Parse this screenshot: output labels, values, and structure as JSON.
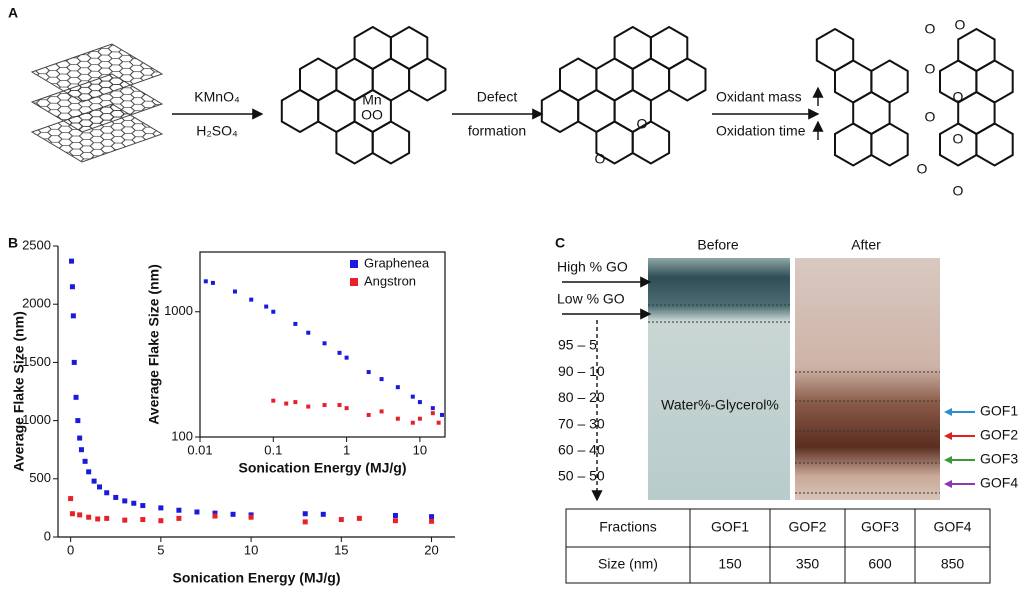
{
  "panels": {
    "a": "A",
    "b": "B",
    "c": "C"
  },
  "panel_a": {
    "reagent_top": "KMnO₄",
    "reagent_bottom": "H₂SO₄",
    "mn": "Mn",
    "mn_oxygens": "OO",
    "defect_top": "Defect",
    "defect_bottom": "formation",
    "defect_oxygens": [
      "O",
      "O"
    ],
    "condition_top": "Oxidant mass",
    "condition_bottom": "Oxidation time",
    "product_oxygens": [
      "O",
      "O",
      "O",
      "O",
      "O",
      "O",
      "O",
      "O"
    ]
  },
  "chart_data": [
    {
      "type": "scatter",
      "xlabel": "Sonication Energy (MJ/g)",
      "ylabel": "Average Flake Size (nm)",
      "xlim": [
        -0.7,
        21.3
      ],
      "ylim": [
        0,
        2500
      ],
      "xticks": [
        0,
        5,
        10,
        15,
        20
      ],
      "yticks": [
        0,
        500,
        1000,
        1500,
        2000,
        2500
      ],
      "series": [
        {
          "color": "#1a1adc",
          "x": [
            0.05,
            0.1,
            0.15,
            0.2,
            0.3,
            0.4,
            0.5,
            0.6,
            0.8,
            1.0,
            1.3,
            1.6,
            2,
            2.5,
            3,
            3.5,
            4,
            5,
            6,
            7,
            8,
            9,
            10,
            13,
            14,
            18,
            20
          ],
          "values": [
            2370,
            2150,
            1900,
            1500,
            1200,
            1000,
            850,
            750,
            650,
            560,
            480,
            430,
            380,
            340,
            310,
            290,
            270,
            250,
            230,
            215,
            205,
            195,
            190,
            200,
            195,
            185,
            175
          ]
        },
        {
          "color": "#e8202a",
          "x": [
            0,
            0.1,
            0.5,
            1,
            1.5,
            2,
            3,
            4,
            5,
            6,
            8,
            10,
            13,
            15,
            16,
            18,
            20
          ],
          "values": [
            330,
            200,
            190,
            170,
            155,
            160,
            145,
            150,
            140,
            160,
            180,
            170,
            130,
            150,
            160,
            140,
            135
          ]
        }
      ]
    },
    {
      "type": "scatter",
      "xlabel": "Sonication Energy (MJ/g)",
      "ylabel": "Average Flake Size (nm)",
      "log_x": true,
      "log_y": true,
      "legend": "upper right",
      "xlim": [
        0.01,
        22
      ],
      "ylim": [
        100,
        3000
      ],
      "xticks": [
        0.01,
        0.1,
        1,
        10
      ],
      "yticks": [
        100,
        1000
      ],
      "series": [
        {
          "name": "Graphenea",
          "color": "#1a1adc",
          "x": [
            0.012,
            0.015,
            0.03,
            0.05,
            0.08,
            0.1,
            0.2,
            0.3,
            0.5,
            0.8,
            1,
            2,
            3,
            5,
            8,
            10,
            15,
            20
          ],
          "values": [
            1750,
            1700,
            1450,
            1250,
            1100,
            1000,
            800,
            680,
            560,
            470,
            430,
            330,
            290,
            250,
            210,
            190,
            170,
            150
          ]
        },
        {
          "name": "Angstron",
          "color": "#e8202a",
          "x": [
            0.1,
            0.15,
            0.2,
            0.3,
            0.5,
            0.8,
            1,
            2,
            3,
            5,
            8,
            10,
            15,
            18
          ],
          "values": [
            195,
            185,
            190,
            175,
            180,
            180,
            170,
            150,
            160,
            140,
            130,
            140,
            155,
            130
          ]
        }
      ]
    }
  ],
  "panel_c": {
    "before": "Before",
    "after": "After",
    "high": "High % GO",
    "low": "Low % GO",
    "ratios": [
      "95 – 5",
      "90 – 10",
      "80 – 20",
      "70 – 30",
      "60 – 40",
      "50 – 50"
    ],
    "solvent": "Water%-Glycerol%",
    "fractions": [
      "GOF1",
      "GOF2",
      "GOF3",
      "GOF4"
    ],
    "fraction_colors": [
      "#2a8fd0",
      "#e02020",
      "#3a9a3a",
      "#8a3ab0"
    ],
    "table": {
      "rows": [
        [
          "Fractions",
          "GOF1",
          "GOF2",
          "GOF3",
          "GOF4"
        ],
        [
          "Size (nm)",
          "150",
          "350",
          "600",
          "850"
        ]
      ]
    }
  }
}
